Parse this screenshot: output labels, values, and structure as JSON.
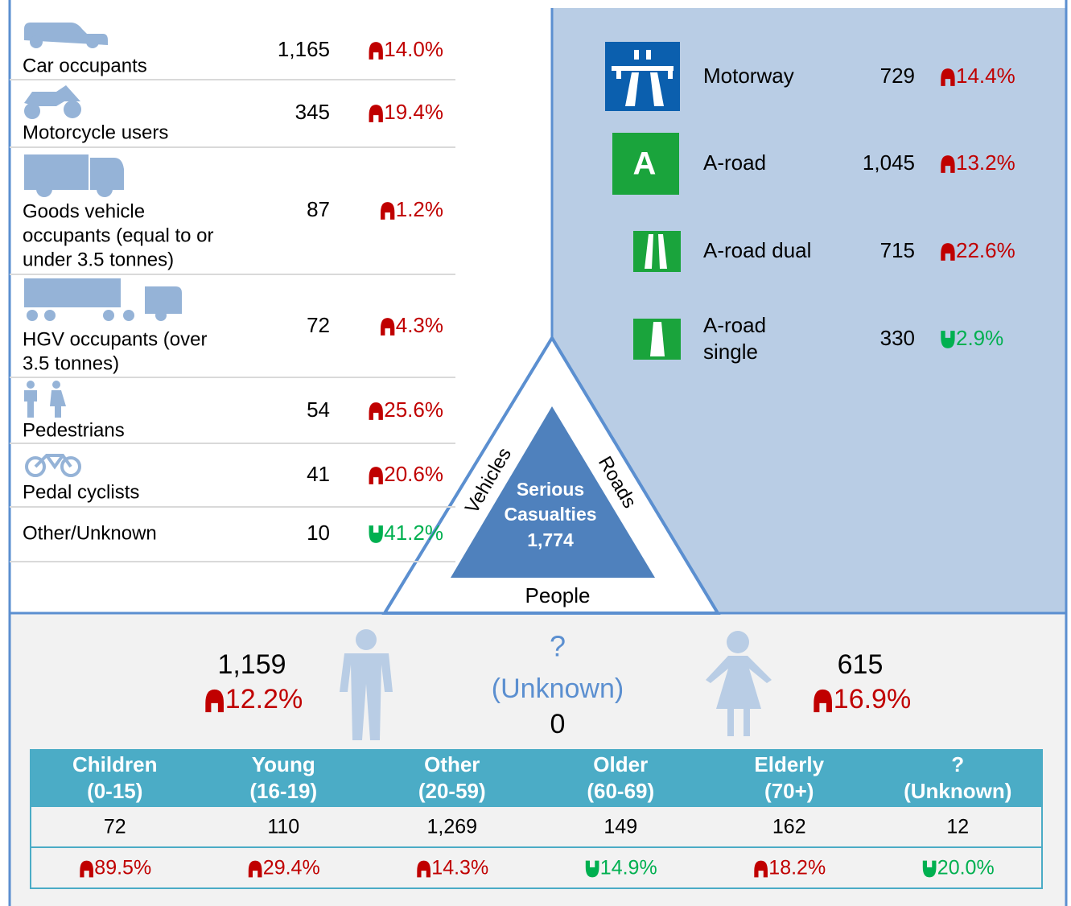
{
  "vehicles": [
    {
      "label": [
        "Car occupants"
      ],
      "value": "1,165",
      "change": "14.0%",
      "direction": "up"
    },
    {
      "label": [
        "Motorcycle users"
      ],
      "value": "345",
      "change": "19.4%",
      "direction": "up"
    },
    {
      "label": [
        "Goods vehicle",
        "occupants (equal to or",
        "under 3.5 tonnes)"
      ],
      "value": "87",
      "change": "1.2%",
      "direction": "up"
    },
    {
      "label": [
        "HGV occupants (over",
        "3.5 tonnes)"
      ],
      "value": "72",
      "change": "4.3%",
      "direction": "up"
    },
    {
      "label": [
        "Pedestrians"
      ],
      "value": "54",
      "change": "25.6%",
      "direction": "up"
    },
    {
      "label": [
        "Pedal cyclists"
      ],
      "value": "41",
      "change": "20.6%",
      "direction": "up"
    },
    {
      "label": [
        "Other/Unknown"
      ],
      "value": "10",
      "change": "41.2%",
      "direction": "down"
    }
  ],
  "roads": [
    {
      "label": [
        "Motorway"
      ],
      "value": "729",
      "change": "14.4%",
      "direction": "up"
    },
    {
      "label": [
        "A-road"
      ],
      "value": "1,045",
      "change": "13.2%",
      "direction": "up",
      "icon_text": "A"
    },
    {
      "label": [
        "A-road dual"
      ],
      "value": "715",
      "change": "22.6%",
      "direction": "up"
    },
    {
      "label": [
        "A-road",
        "single"
      ],
      "value": "330",
      "change": "2.9%",
      "direction": "down"
    }
  ],
  "center": {
    "vehicles": "Vehicles",
    "roads": "Roads",
    "people": "People",
    "title": [
      "Serious",
      "Casualties"
    ],
    "total": "1,774"
  },
  "people": {
    "male": {
      "value": "1,159",
      "change": "12.2%",
      "direction": "up"
    },
    "unknown": {
      "symbol": "?",
      "label": "(Unknown)",
      "value": "0"
    },
    "female": {
      "value": "615",
      "change": "16.9%",
      "direction": "up"
    }
  },
  "ages": {
    "headers": [
      [
        "Children",
        "(0-15)"
      ],
      [
        "Young",
        "(16-19)"
      ],
      [
        "Other",
        "(20-59)"
      ],
      [
        "Older",
        "(60-69)"
      ],
      [
        "Elderly",
        "(70+)"
      ],
      [
        "?",
        "(Unknown)"
      ]
    ],
    "values": [
      "72",
      "110",
      "1,269",
      "149",
      "162",
      "12"
    ],
    "changes": [
      "89.5%",
      "29.4%",
      "14.3%",
      "14.9%",
      "18.2%",
      "20.0%"
    ],
    "directions": [
      "up",
      "up",
      "up",
      "down",
      "up",
      "down"
    ]
  }
}
